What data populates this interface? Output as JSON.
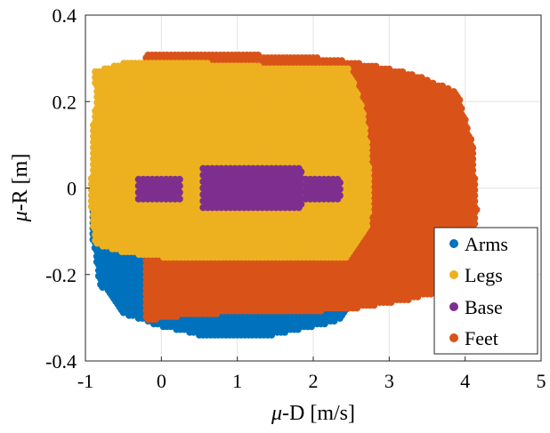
{
  "chart_data": {
    "type": "scatter",
    "title": "",
    "xlabel_prefix": "μ",
    "xlabel_suffix": "-D [m/s]",
    "ylabel_prefix": "μ",
    "ylabel_suffix": "-R [m]",
    "xlim": [
      -1,
      5
    ],
    "ylim": [
      -0.4,
      0.4
    ],
    "x_ticks": [
      -1,
      0,
      1,
      2,
      3,
      4,
      5
    ],
    "y_ticks": [
      -0.4,
      -0.2,
      0,
      0.2,
      0.4
    ],
    "x_tick_labels": [
      "-1",
      "0",
      "1",
      "2",
      "3",
      "4",
      "5"
    ],
    "y_tick_labels": [
      "-0.4",
      "-0.2",
      "0",
      "0.2",
      "0.4"
    ],
    "grid": true,
    "legend_position": "bottom-right",
    "series": [
      {
        "name": "Arms",
        "color": "#0072BD",
        "region_outline": [
          [
            -0.9,
            0.0
          ],
          [
            -0.88,
            0.09
          ],
          [
            -0.72,
            0.13
          ],
          [
            -0.65,
            0.15
          ],
          [
            -0.2,
            0.16
          ],
          [
            0.0,
            0.15
          ],
          [
            0.5,
            0.1
          ],
          [
            1.5,
            0.1
          ],
          [
            2.3,
            0.21
          ],
          [
            2.45,
            0.23
          ],
          [
            2.7,
            0.2
          ],
          [
            2.75,
            0.12
          ],
          [
            2.78,
            0.0
          ],
          [
            2.78,
            -0.2
          ],
          [
            2.6,
            -0.26
          ],
          [
            2.3,
            -0.31
          ],
          [
            1.5,
            -0.34
          ],
          [
            0.5,
            -0.34
          ],
          [
            0.0,
            -0.32
          ],
          [
            -0.5,
            -0.29
          ],
          [
            -0.82,
            -0.22
          ],
          [
            -0.9,
            -0.12
          ]
        ]
      },
      {
        "name": "Legs",
        "color": "#EDB120",
        "region_outline": [
          [
            -0.92,
            0.03
          ],
          [
            -0.9,
            0.14
          ],
          [
            -0.85,
            0.21
          ],
          [
            -0.9,
            0.27
          ],
          [
            -0.5,
            0.29
          ],
          [
            0.5,
            0.29
          ],
          [
            1.5,
            0.28
          ],
          [
            2.45,
            0.28
          ],
          [
            2.65,
            0.19
          ],
          [
            2.72,
            0.09
          ],
          [
            2.75,
            0.0
          ],
          [
            2.72,
            -0.09
          ],
          [
            2.45,
            -0.16
          ],
          [
            2.0,
            -0.16
          ],
          [
            1.0,
            -0.16
          ],
          [
            0.0,
            -0.16
          ],
          [
            -0.5,
            -0.15
          ],
          [
            -0.88,
            -0.13
          ],
          [
            -0.92,
            -0.05
          ]
        ]
      },
      {
        "name": "Base",
        "color": "#7E2F8E",
        "clusters": [
          {
            "x": [
              -0.3,
              0.25
            ],
            "y": [
              -0.025,
              0.025
            ]
          },
          {
            "x": [
              0.55,
              1.85
            ],
            "y": [
              -0.045,
              0.05
            ]
          },
          {
            "x": [
              1.9,
              2.35
            ],
            "y": [
              -0.025,
              0.025
            ]
          }
        ]
      },
      {
        "name": "Feet",
        "color": "#D95319",
        "region_outline": [
          [
            -0.2,
            0.31
          ],
          [
            1.0,
            0.31
          ],
          [
            2.2,
            0.3
          ],
          [
            2.9,
            0.28
          ],
          [
            3.4,
            0.26
          ],
          [
            3.9,
            0.22
          ],
          [
            4.1,
            0.1
          ],
          [
            4.15,
            -0.05
          ],
          [
            4.05,
            -0.2
          ],
          [
            3.7,
            -0.24
          ],
          [
            3.2,
            -0.26
          ],
          [
            2.5,
            -0.28
          ],
          [
            1.5,
            -0.29
          ],
          [
            0.8,
            -0.29
          ],
          [
            0.0,
            -0.3
          ],
          [
            -0.2,
            -0.31
          ],
          [
            -0.2,
            -0.25
          ],
          [
            -0.2,
            0.0
          ]
        ]
      }
    ]
  }
}
